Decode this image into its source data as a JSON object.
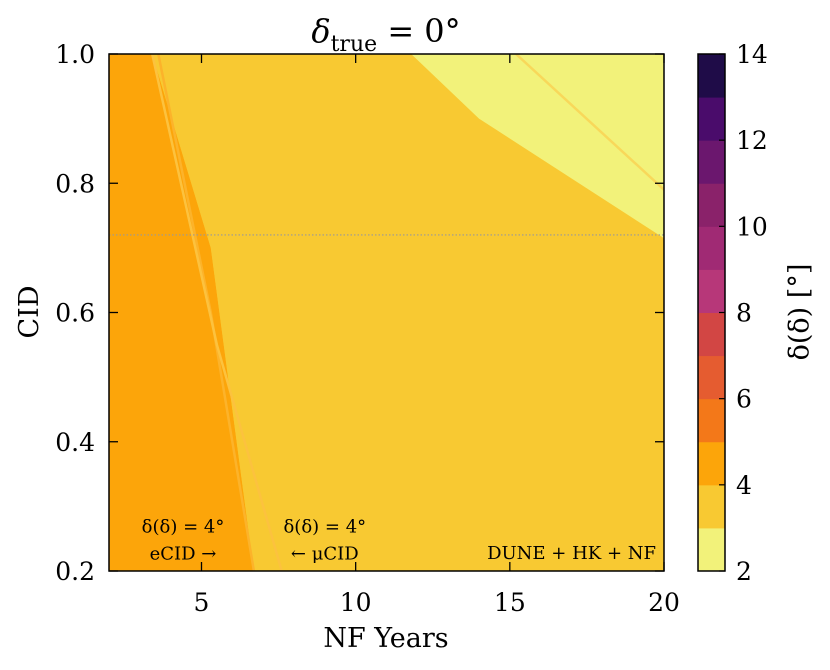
{
  "chart_data": {
    "type": "contour",
    "title": "δ_true = 0°",
    "title_parts": {
      "base": "δ",
      "subscript": "true",
      "rest": " = 0°"
    },
    "xlabel": "NF Years",
    "ylabel": "CID",
    "colorbar_label": "δ(δ) [°]",
    "xlim": [
      2,
      20
    ],
    "ylim": [
      0.2,
      1.0
    ],
    "x_ticks": [
      5,
      10,
      15,
      20
    ],
    "y_ticks": [
      0.2,
      0.4,
      0.6,
      0.8,
      1.0
    ],
    "x_tick_labels": [
      "5",
      "10",
      "15",
      "20"
    ],
    "y_tick_labels": [
      "0.2",
      "0.4",
      "0.6",
      "0.8",
      "1.0"
    ],
    "colorbar": {
      "levels": [
        2,
        3,
        4,
        5,
        6,
        7,
        8,
        9,
        10,
        11,
        12,
        13,
        14
      ],
      "tick_values": [
        2,
        4,
        6,
        8,
        10,
        12,
        14
      ],
      "tick_labels": [
        "2",
        "4",
        "6",
        "8",
        "10",
        "12",
        "14"
      ],
      "colors": [
        "#f2f27a",
        "#f8c932",
        "#fca50a",
        "#f37819",
        "#e55c30",
        "#d24644",
        "#b73779",
        "#a02a74",
        "#8a226a",
        "#6b176e",
        "#4a0c6b",
        "#1f0c48",
        "#04041a"
      ]
    },
    "regions": [
      {
        "level_range": [
          4,
          5
        ],
        "color": "#fca50a",
        "polygon": [
          [
            2,
            0.2
          ],
          [
            2,
            1.0
          ],
          [
            3.4,
            1.0
          ],
          [
            5.3,
            0.7
          ],
          [
            6.7,
            0.2
          ]
        ]
      },
      {
        "level_range": [
          3,
          4
        ],
        "color": "#f8c932",
        "polygon": [
          [
            3.4,
            1.0
          ],
          [
            12,
            1.0
          ],
          [
            14,
            0.9
          ],
          [
            20,
            0.71
          ],
          [
            20,
            0.2
          ],
          [
            6.7,
            0.2
          ],
          [
            5.3,
            0.7
          ]
        ]
      },
      {
        "level_range": [
          2,
          3
        ],
        "color": "#f2f27a",
        "polygon": [
          [
            11.8,
            1.0
          ],
          [
            20,
            1.0
          ],
          [
            20,
            0.715
          ],
          [
            14,
            0.9
          ]
        ]
      }
    ],
    "lines": [
      {
        "name": "eCID contour",
        "color": "#fcb32a",
        "points": [
          [
            3.6,
            1.0
          ],
          [
            5.3,
            0.6
          ],
          [
            6.7,
            0.2
          ]
        ]
      },
      {
        "name": "μCID contour",
        "color": "#fcc23e",
        "points": [
          [
            3.4,
            1.0
          ],
          [
            5.5,
            0.55
          ],
          [
            7.6,
            0.2
          ]
        ]
      },
      {
        "name": "upper-right contour",
        "color": "#f8d85a",
        "points": [
          [
            15.2,
            1.0
          ],
          [
            20,
            0.79
          ]
        ]
      }
    ],
    "hline": {
      "y": 0.72,
      "style": "dotted",
      "color": "#999999"
    },
    "annotations": [
      {
        "line1": "δ(δ) = 4°",
        "line2": "eCID →",
        "x": 4.4,
        "y": 0.25
      },
      {
        "line1": "δ(δ) = 4°",
        "line2": "← μCID",
        "x": 9.0,
        "y": 0.25
      }
    ],
    "legend_text": "DUNE + HK + NF",
    "grid": false
  }
}
